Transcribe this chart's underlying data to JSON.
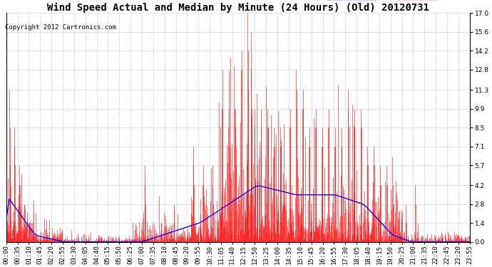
{
  "title": "Wind Speed Actual and Median by Minute (24 Hours) (Old) 20120731",
  "copyright": "Copyright 2012 Cartronics.com",
  "yticks": [
    0.0,
    1.4,
    2.8,
    4.2,
    5.7,
    7.1,
    8.5,
    9.9,
    11.3,
    12.8,
    14.2,
    15.6,
    17.0
  ],
  "ymax": 17.0,
  "ymin": 0.0,
  "legend_median_color": "#0000ff",
  "legend_wind_color": "#ff0000",
  "background_color": "#ffffff",
  "plot_bg_color": "#ffffff",
  "grid_color": "#bbbbbb",
  "title_fontsize": 10,
  "tick_fontsize": 6.5,
  "num_minutes": 1440,
  "x_labels": [
    "00:00",
    "00:35",
    "01:10",
    "01:45",
    "02:20",
    "02:55",
    "03:30",
    "04:05",
    "04:40",
    "05:15",
    "05:50",
    "06:25",
    "07:00",
    "07:35",
    "08:10",
    "08:45",
    "09:20",
    "09:55",
    "10:30",
    "11:05",
    "11:40",
    "12:15",
    "12:50",
    "13:25",
    "14:00",
    "14:35",
    "15:10",
    "15:45",
    "16:20",
    "16:55",
    "17:30",
    "18:05",
    "18:40",
    "19:15",
    "19:50",
    "20:25",
    "21:00",
    "21:35",
    "22:10",
    "22:45",
    "23:20",
    "23:55"
  ]
}
